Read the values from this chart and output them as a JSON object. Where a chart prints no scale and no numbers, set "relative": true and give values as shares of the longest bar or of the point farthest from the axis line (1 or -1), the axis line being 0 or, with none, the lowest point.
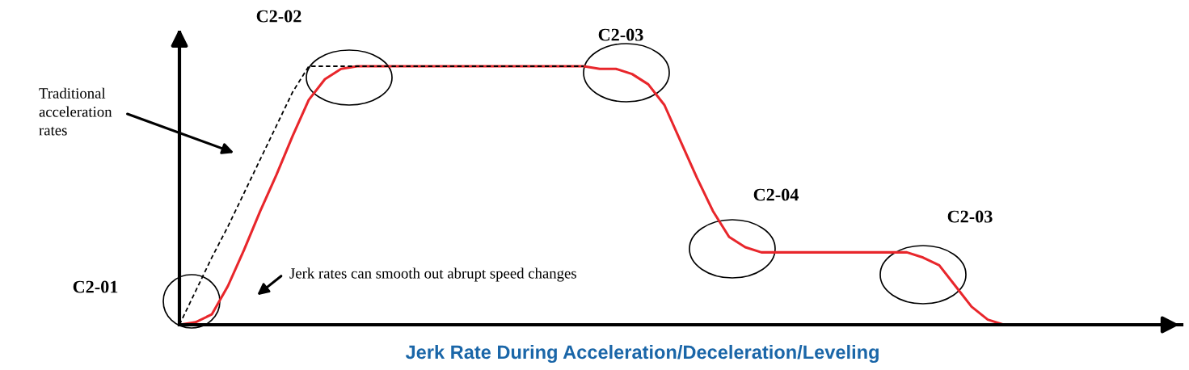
{
  "chart_data": {
    "type": "line",
    "relative": true,
    "title": "Jerk Rate During Acceleration/Deceleration/Leveling",
    "categories": [
      null,
      null,
      null,
      null,
      null,
      null,
      null,
      null,
      null,
      null,
      null,
      null,
      null,
      null,
      null,
      null,
      null,
      null,
      null,
      null,
      null,
      null,
      null,
      null,
      null,
      null,
      null,
      null,
      null,
      null,
      null,
      null,
      null,
      null,
      null,
      null,
      null,
      null,
      null,
      null,
      null,
      null,
      null,
      null,
      null,
      null,
      null,
      null,
      null,
      null,
      null,
      null,
      null,
      null,
      null,
      null,
      null,
      null,
      null,
      null,
      null,
      null,
      null
    ],
    "series": [
      {
        "color": "#e8262b",
        "line_style": "solid",
        "values": [
          0,
          0.01,
          0.04,
          0.15,
          0.29,
          0.44,
          0.58,
          0.73,
          0.87,
          0.95,
          0.99,
          1,
          1,
          1,
          1,
          1,
          1,
          1,
          1,
          1,
          1,
          1,
          1,
          1,
          1,
          1,
          0.99,
          0.99,
          0.97,
          0.93,
          0.85,
          0.71,
          0.57,
          0.44,
          0.34,
          0.3,
          0.28,
          0.28,
          0.28,
          0.28,
          0.28,
          0.28,
          0.28,
          0.28,
          0.28,
          0.28,
          0.26,
          0.23,
          0.15,
          0.07,
          0.02,
          0,
          null,
          null,
          null,
          null,
          null,
          null,
          null,
          null,
          null,
          null,
          null
        ]
      },
      {
        "color": "#000000",
        "line_style": "dashed",
        "values": [
          0,
          0.13,
          0.26,
          0.38,
          0.51,
          0.64,
          0.77,
          0.9,
          1,
          1,
          1,
          1,
          1,
          1,
          1,
          1,
          1,
          1,
          1,
          1,
          1,
          1,
          1,
          1,
          1,
          1,
          null,
          null,
          null,
          null,
          null,
          null,
          null,
          null,
          null,
          null,
          null,
          null,
          null,
          null,
          null,
          null,
          null,
          null,
          null,
          null,
          null,
          null,
          null,
          null,
          null,
          null,
          null,
          null,
          null,
          null,
          null,
          null,
          null,
          null,
          null,
          null,
          null
        ]
      }
    ],
    "annotations": [
      "C2-01",
      "C2-02",
      "C2-03",
      "C2-04",
      "C2-03",
      "Traditional\nacceleration\nrates",
      "Jerk rates can smooth out abrupt speed changes"
    ],
    "marker": "none"
  }
}
